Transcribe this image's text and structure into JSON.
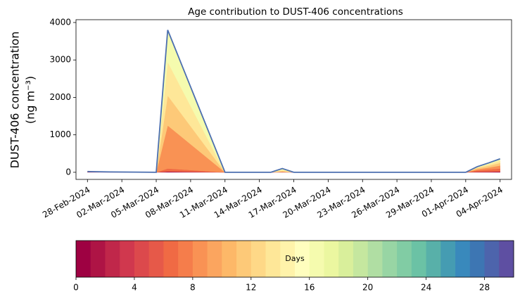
{
  "chart_data": {
    "type": "stacked_area",
    "title": "Age contribution to DUST-406 concentrations",
    "ylabel": [
      "DUST-406 concentration",
      "(ng m⁻³)"
    ],
    "x": [
      "2024-02-28",
      "2024-03-01",
      "2024-03-05",
      "2024-03-06",
      "2024-03-07",
      "2024-03-08",
      "2024-03-09",
      "2024-03-10",
      "2024-03-11",
      "2024-03-15",
      "2024-03-16",
      "2024-03-17",
      "2024-04-01",
      "2024-04-02",
      "2024-04-03",
      "2024-04-04"
    ],
    "series": [
      {
        "color": "#9e0142",
        "values": [
          10,
          5,
          0,
          20,
          16,
          12,
          8,
          4,
          0,
          0,
          5,
          0,
          0,
          10,
          15,
          20
        ]
      },
      {
        "color": "#f06a44",
        "values": [
          10,
          5,
          0,
          80,
          64,
          48,
          32,
          16,
          0,
          0,
          10,
          0,
          0,
          40,
          60,
          80
        ]
      },
      {
        "color": "#f99254",
        "values": [
          0,
          0,
          0,
          1150,
          920,
          690,
          460,
          230,
          0,
          0,
          0,
          0,
          0,
          30,
          50,
          80
        ]
      },
      {
        "color": "#fdc978",
        "values": [
          0,
          0,
          0,
          800,
          640,
          480,
          320,
          160,
          0,
          0,
          20,
          0,
          0,
          30,
          50,
          70
        ]
      },
      {
        "color": "#fee798",
        "values": [
          0,
          0,
          0,
          900,
          720,
          540,
          360,
          180,
          0,
          0,
          30,
          0,
          0,
          20,
          40,
          60
        ]
      },
      {
        "color": "#f5fbae",
        "values": [
          0,
          0,
          0,
          850,
          680,
          510,
          340,
          170,
          0,
          0,
          35,
          0,
          0,
          20,
          35,
          50
        ]
      },
      {
        "type": "line",
        "color": "#4c6fb0",
        "values": [
          20,
          10,
          0,
          3800,
          3040,
          2280,
          1520,
          760,
          0,
          0,
          100,
          0,
          0,
          150,
          250,
          360
        ]
      }
    ],
    "xlim": [
      "2024-02-27",
      "2024-04-05"
    ],
    "xticks": [
      {
        "value": "2024-02-28",
        "label": "28-Feb-2024"
      },
      {
        "value": "2024-03-02",
        "label": "02-Mar-2024"
      },
      {
        "value": "2024-03-05",
        "label": "05-Mar-2024"
      },
      {
        "value": "2024-03-08",
        "label": "08-Mar-2024"
      },
      {
        "value": "2024-03-11",
        "label": "11-Mar-2024"
      },
      {
        "value": "2024-03-14",
        "label": "14-Mar-2024"
      },
      {
        "value": "2024-03-17",
        "label": "17-Mar-2024"
      },
      {
        "value": "2024-03-20",
        "label": "20-Mar-2024"
      },
      {
        "value": "2024-03-23",
        "label": "23-Mar-2024"
      },
      {
        "value": "2024-03-26",
        "label": "26-Mar-2024"
      },
      {
        "value": "2024-03-29",
        "label": "29-Mar-2024"
      },
      {
        "value": "2024-04-01",
        "label": "01-Apr-2024"
      },
      {
        "value": "2024-04-04",
        "label": "04-Apr-2024"
      }
    ],
    "ylim": [
      -190,
      4075
    ],
    "yticks": [
      0,
      1000,
      2000,
      3000,
      4000
    ],
    "colorbar": {
      "label": "Days",
      "lim": [
        0,
        30
      ],
      "ticks": [
        0,
        4,
        8,
        12,
        16,
        20,
        24,
        28
      ],
      "colors": [
        "#9e0142",
        "#ae1445",
        "#c0274a",
        "#d0384e",
        "#dc494c",
        "#e65949",
        "#f06a44",
        "#f57d4b",
        "#f99254",
        "#fba55f",
        "#fdb868",
        "#fdc978",
        "#fed887",
        "#fee798",
        "#fff3aa",
        "#fffebe",
        "#f5fbae",
        "#ebf7a0",
        "#d9ef9b",
        "#c5e79f",
        "#b0dea3",
        "#98d5a4",
        "#81cca4",
        "#6bc2a5",
        "#58b0a9",
        "#459cb2",
        "#3989bc",
        "#3d76b3",
        "#4d64ac",
        "#5e4fa2"
      ]
    }
  }
}
